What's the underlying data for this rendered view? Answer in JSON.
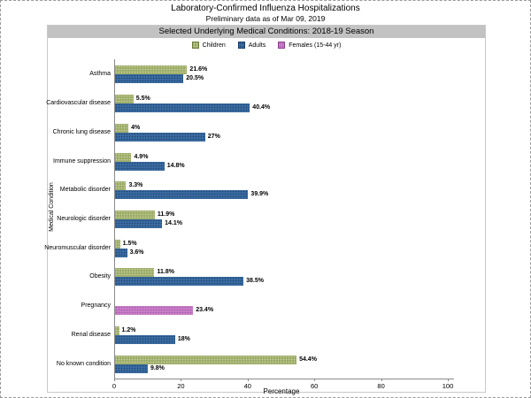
{
  "header": {
    "title": "Laboratory-Confirmed Influenza Hospitalizations",
    "subtitle": "Preliminary data as of Mar 09, 2019",
    "band": "Selected Underlying Medical Conditions: 2018-19 Season"
  },
  "legend": {
    "items": [
      {
        "key": "children",
        "label": "Children",
        "color": "#9ead6a",
        "dot": "#ccd7a3",
        "border": "#6f7d3d"
      },
      {
        "key": "adults",
        "label": "Adults",
        "color": "#3a6a9f",
        "dot": "#1b4473",
        "border": "#153a64"
      },
      {
        "key": "females",
        "label": "Females (15-44 yr)",
        "color": "#c87dc8",
        "dot": "#a158a1",
        "border": "#8a3f8a"
      }
    ]
  },
  "chart_data": {
    "type": "bar",
    "orientation": "horizontal",
    "title": "Laboratory-Confirmed Influenza Hospitalizations",
    "subtitle": "Preliminary data as of Mar 09, 2019",
    "section_header": "Selected Underlying Medical Conditions: 2018-19 Season",
    "xlabel": "Percentage",
    "ylabel": "Medical Condition",
    "xlim": [
      0,
      100
    ],
    "xticks": [
      "0",
      "20",
      "40",
      "60",
      "80",
      "100"
    ],
    "xtick_values": [
      0,
      20,
      40,
      60,
      80,
      100
    ],
    "grid": false,
    "legend_position": "top",
    "series_names": [
      "Children",
      "Adults",
      "Females (15-44 yr)"
    ],
    "rows": [
      {
        "category": "Asthma",
        "bars": [
          {
            "series": "children",
            "value": 21.6,
            "label": "21.6%"
          },
          {
            "series": "adults",
            "value": 20.5,
            "label": "20.5%"
          }
        ]
      },
      {
        "category": "Cardiovascular disease",
        "bars": [
          {
            "series": "children",
            "value": 5.5,
            "label": "5.5%"
          },
          {
            "series": "adults",
            "value": 40.4,
            "label": "40.4%"
          }
        ]
      },
      {
        "category": "Chronic lung disease",
        "bars": [
          {
            "series": "children",
            "value": 4,
            "label": "4%"
          },
          {
            "series": "adults",
            "value": 27,
            "label": "27%"
          }
        ]
      },
      {
        "category": "Immune suppression",
        "bars": [
          {
            "series": "children",
            "value": 4.9,
            "label": "4.9%"
          },
          {
            "series": "adults",
            "value": 14.8,
            "label": "14.8%"
          }
        ]
      },
      {
        "category": "Metabolic disorder",
        "bars": [
          {
            "series": "children",
            "value": 3.3,
            "label": "3.3%"
          },
          {
            "series": "adults",
            "value": 39.9,
            "label": "39.9%"
          }
        ]
      },
      {
        "category": "Neurologic disorder",
        "bars": [
          {
            "series": "children",
            "value": 11.9,
            "label": "11.9%"
          },
          {
            "series": "adults",
            "value": 14.1,
            "label": "14.1%"
          }
        ]
      },
      {
        "category": "Neuromuscular disorder",
        "bars": [
          {
            "series": "children",
            "value": 1.5,
            "label": "1.5%"
          },
          {
            "series": "adults",
            "value": 3.6,
            "label": "3.6%"
          }
        ]
      },
      {
        "category": "Obesity",
        "bars": [
          {
            "series": "children",
            "value": 11.8,
            "label": "11.8%"
          },
          {
            "series": "adults",
            "value": 38.5,
            "label": "38.5%"
          }
        ]
      },
      {
        "category": "Pregnancy",
        "bars": [
          {
            "series": "females",
            "value": 23.4,
            "label": "23.4%",
            "slot": 1
          }
        ]
      },
      {
        "category": "Renal disease",
        "bars": [
          {
            "series": "children",
            "value": 1.2,
            "label": "1.2%"
          },
          {
            "series": "adults",
            "value": 18,
            "label": "18%"
          }
        ]
      },
      {
        "category": "No known condition",
        "bars": [
          {
            "series": "children",
            "value": 54.4,
            "label": "54.4%"
          },
          {
            "series": "adults",
            "value": 9.8,
            "label": "9.8%"
          }
        ]
      }
    ]
  }
}
